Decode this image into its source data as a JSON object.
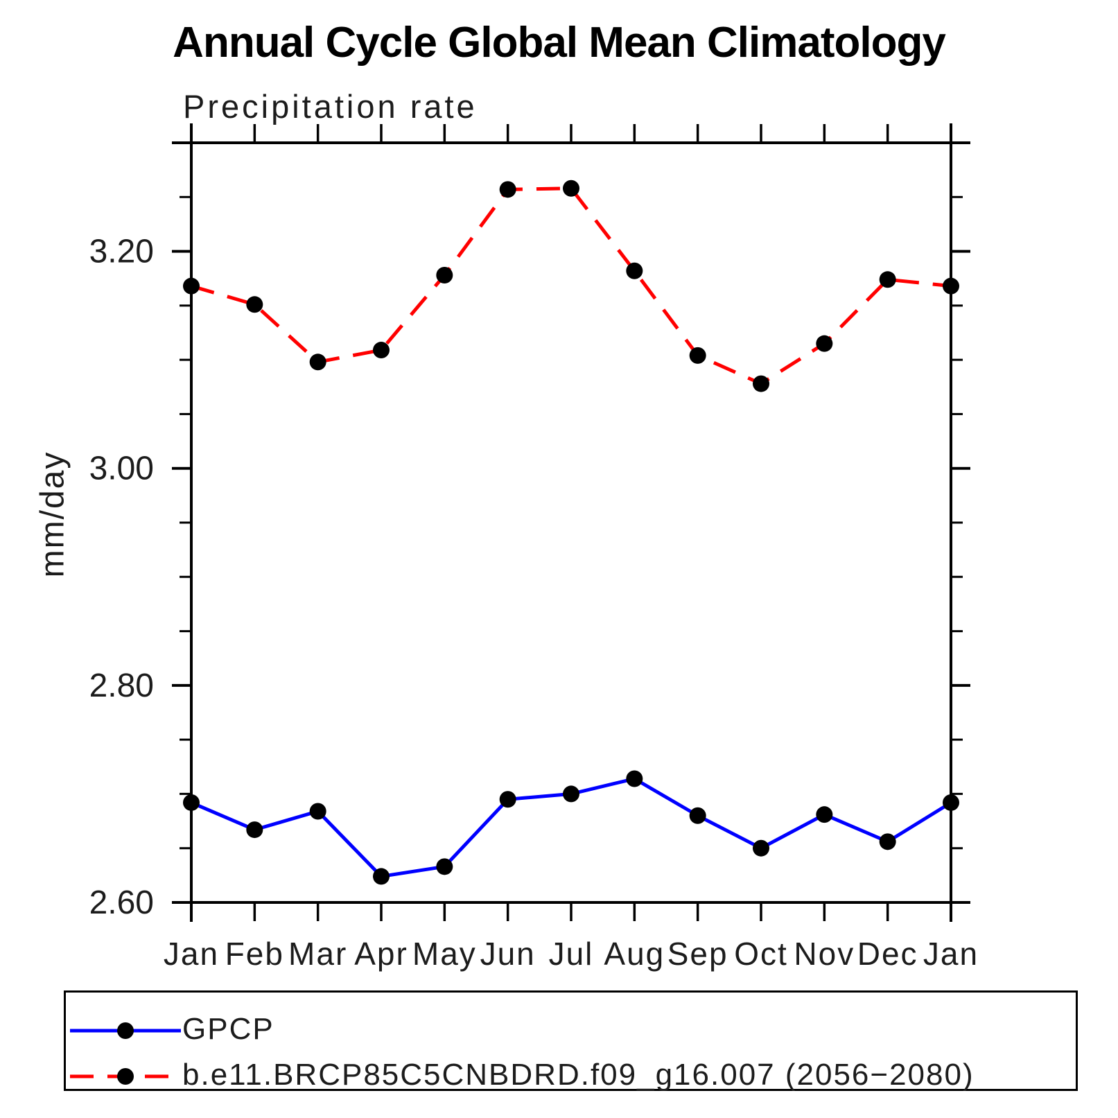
{
  "page": {
    "title": "Annual Cycle Global Mean Climatology",
    "subtitle": "Precipitation rate",
    "y_axis_title": "mm/day"
  },
  "colors": {
    "gpcp_line": "#0000ff",
    "model_line": "#ff0000",
    "marker": "#000000",
    "axis": "#000000"
  },
  "legend": {
    "position": "bottom",
    "entries": [
      {
        "label": "GPCP",
        "line_style": "solid",
        "color": "#0000ff"
      },
      {
        "label": "b.e11.BRCP85C5CNBDRD.f09_g16.007 (2056−2080)",
        "line_style": "dashed",
        "color": "#ff0000"
      }
    ]
  },
  "chart_data": {
    "type": "line",
    "title": "Annual Cycle Global Mean Climatology",
    "subtitle": "Precipitation rate",
    "xlabel": "",
    "ylabel": "mm/day",
    "categories": [
      "Jan",
      "Feb",
      "Mar",
      "Apr",
      "May",
      "Jun",
      "Jul",
      "Aug",
      "Sep",
      "Oct",
      "Nov",
      "Dec",
      "Jan"
    ],
    "ylim": [
      2.6,
      3.3
    ],
    "ytick_major": [
      2.6,
      2.8,
      3.0,
      3.2
    ],
    "ytick_labels": [
      "2.60",
      "2.80",
      "3.00",
      "3.20"
    ],
    "ytick_minor": [
      2.65,
      2.7,
      2.75,
      2.85,
      2.9,
      2.95,
      3.05,
      3.1,
      3.15,
      3.25
    ],
    "grid": false,
    "legend_position": "bottom",
    "series": [
      {
        "name": "GPCP",
        "style": "solid",
        "color": "#0000ff",
        "values": [
          2.692,
          2.667,
          2.684,
          2.624,
          2.633,
          2.695,
          2.7,
          2.714,
          2.68,
          2.65,
          2.681,
          2.656,
          2.692
        ]
      },
      {
        "name": "b.e11.BRCP85C5CNBDRD.f09_g16.007 (2056−2080)",
        "style": "dashed",
        "color": "#ff0000",
        "values": [
          3.168,
          3.151,
          3.098,
          3.109,
          3.178,
          3.257,
          3.258,
          3.182,
          3.104,
          3.078,
          3.115,
          3.174,
          3.168
        ]
      }
    ]
  }
}
